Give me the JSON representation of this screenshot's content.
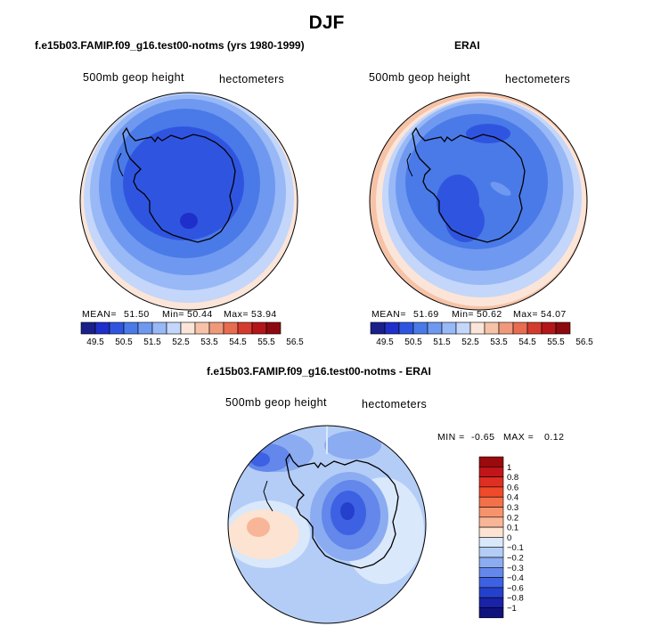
{
  "chart_data": [
    {
      "type": "heatmap",
      "projection": "south polar stereographic",
      "title": "f.e15b03.FAMIP.f09_g16.test00-notms (yrs 1980-1999)",
      "left_label": "500mb geop height",
      "right_label": "hectometers",
      "stats": {
        "mean_label": "MEAN=",
        "mean": "51.50",
        "min_label": "Min=",
        "min": "50.44",
        "max_label": "Max=",
        "max": "53.94"
      },
      "colorbar": {
        "orientation": "horizontal",
        "ticks": [
          "49.5",
          "50.5",
          "51.5",
          "52.5",
          "53.5",
          "54.5",
          "55.5",
          "56.5"
        ],
        "colors": [
          "#1b1f8a",
          "#1f2fc9",
          "#2f55e0",
          "#4a7ae8",
          "#6f99f0",
          "#98b8f6",
          "#c4d6fa",
          "#fbe5d8",
          "#f6c3a8",
          "#f0997a",
          "#e86c50",
          "#d43b2e",
          "#b3161a",
          "#8c0a0f"
        ]
      }
    },
    {
      "type": "heatmap",
      "projection": "south polar stereographic",
      "title": "ERAI",
      "left_label": "500mb geop height",
      "right_label": "hectometers",
      "stats": {
        "mean_label": "MEAN=",
        "mean": "51.69",
        "min_label": "Min=",
        "min": "50.62",
        "max_label": "Max=",
        "max": "54.07"
      },
      "colorbar": {
        "orientation": "horizontal",
        "ticks": [
          "49.5",
          "50.5",
          "51.5",
          "52.5",
          "53.5",
          "54.5",
          "55.5",
          "56.5"
        ],
        "colors": [
          "#1b1f8a",
          "#1f2fc9",
          "#2f55e0",
          "#4a7ae8",
          "#6f99f0",
          "#98b8f6",
          "#c4d6fa",
          "#fbe5d8",
          "#f6c3a8",
          "#f0997a",
          "#e86c50",
          "#d43b2e",
          "#b3161a",
          "#8c0a0f"
        ]
      }
    },
    {
      "type": "heatmap",
      "projection": "south polar stereographic",
      "title": "f.e15b03.FAMIP.f09_g16.test00-notms - ERAI",
      "left_label": "500mb geop height",
      "right_label": "hectometers",
      "stats": {
        "min_label": "MIN =",
        "min": "-0.65",
        "max_label": "MAX =",
        "max": "0.12"
      },
      "colorbar": {
        "orientation": "vertical",
        "ticks": [
          "1",
          "0.8",
          "0.6",
          "0.4",
          "0.3",
          "0.2",
          "0.1",
          "0",
          "−0.1",
          "−0.2",
          "−0.3",
          "−0.4",
          "−0.6",
          "−0.8",
          "−1"
        ],
        "colors": [
          "#9b0a0c",
          "#c0161a",
          "#df2e22",
          "#f04a2a",
          "#f47048",
          "#f6936c",
          "#f8b597",
          "#fce3d2",
          "#d9e8fb",
          "#b4cdf7",
          "#8cacf1",
          "#6387ea",
          "#3d61e2",
          "#2540cc",
          "#1a22a8",
          "#10137e"
        ]
      }
    }
  ],
  "page": {
    "title": "DJF"
  }
}
